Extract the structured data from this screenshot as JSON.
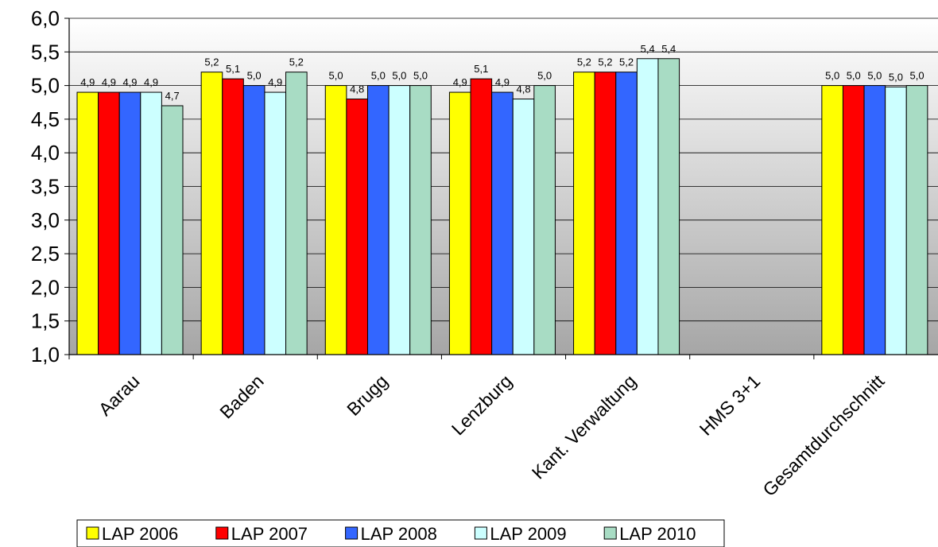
{
  "chart_data": {
    "type": "bar",
    "title": "",
    "xlabel": "",
    "ylabel": "",
    "ylim": [
      1.0,
      6.0
    ],
    "yticks": [
      "1,0",
      "1,5",
      "2,0",
      "2,5",
      "3,0",
      "3,5",
      "4,0",
      "4,5",
      "5,0",
      "5,5",
      "6,0"
    ],
    "categories": [
      "Aarau",
      "Baden",
      "Brugg",
      "Lenzburg",
      "Kant. Verwaltung",
      "HMS 3+1",
      "Gesamtdurchschnitt"
    ],
    "series": [
      {
        "name": "LAP 2006",
        "color": "#ffff00",
        "values": [
          4.9,
          5.2,
          5.0,
          4.9,
          5.2,
          null,
          5.0
        ],
        "labels": [
          "4,9",
          "5,2",
          "5,0",
          "4,9",
          "5,2",
          "",
          "5,0"
        ]
      },
      {
        "name": "LAP 2007",
        "color": "#ff0000",
        "values": [
          4.9,
          5.1,
          4.8,
          5.1,
          5.2,
          null,
          5.0
        ],
        "labels": [
          "4,9",
          "5,1",
          "4,8",
          "5,1",
          "5,2",
          "",
          "5,0"
        ]
      },
      {
        "name": "LAP 2008",
        "color": "#3366ff",
        "values": [
          4.9,
          5.0,
          5.0,
          4.9,
          5.2,
          null,
          5.0
        ],
        "labels": [
          "4,9",
          "5,0",
          "5,0",
          "4,9",
          "5,2",
          "",
          "5,0"
        ]
      },
      {
        "name": "LAP 2009",
        "color": "#ccffff",
        "values": [
          4.9,
          4.9,
          5.0,
          4.8,
          5.4,
          null,
          4.98
        ],
        "labels": [
          "4,9",
          "4,9",
          "5,0",
          "4,8",
          "5,4",
          "",
          "5,0"
        ]
      },
      {
        "name": "LAP 2010",
        "color": "#a8dcc4",
        "values": [
          4.7,
          5.2,
          5.0,
          5.0,
          5.4,
          null,
          5.0
        ],
        "labels": [
          "4,7",
          "5,2",
          "5,0",
          "5,0",
          "5,4",
          "",
          "5,0"
        ]
      }
    ],
    "grid": true,
    "legend": "bottom"
  }
}
